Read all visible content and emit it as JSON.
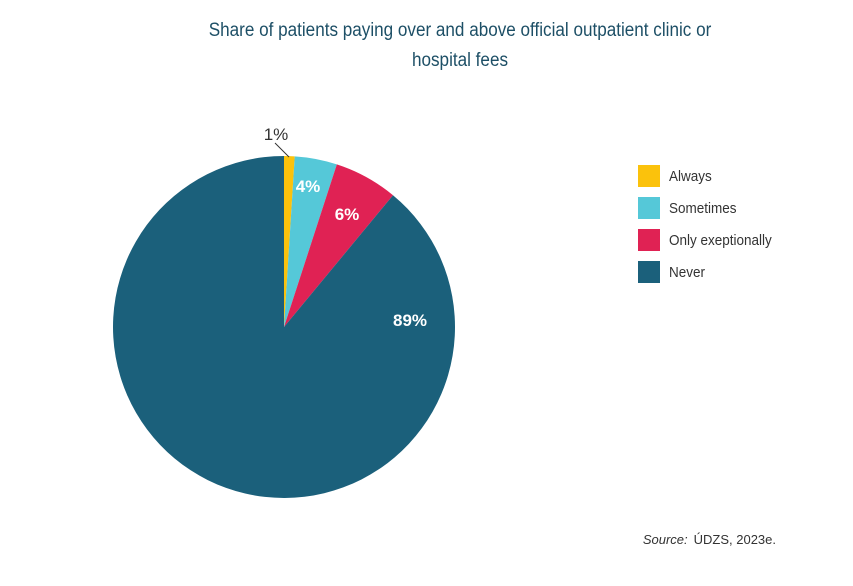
{
  "chart_data": {
    "type": "pie",
    "title": "Share of patients paying over and above official outpatient clinic or hospital fees",
    "slices": [
      {
        "label": "Always",
        "value": 1,
        "display": "1%",
        "color": "#FBC20C"
      },
      {
        "label": "Sometimes",
        "value": 4,
        "display": "4%",
        "color": "#55C8D8"
      },
      {
        "label": "Only exeptionally",
        "value": 6,
        "display": "6%",
        "color": "#E02254"
      },
      {
        "label": "Never",
        "value": 89,
        "display": "89%",
        "color": "#1B607B"
      }
    ],
    "start_angle": "top, clockwise",
    "legend_position": "right"
  },
  "source": {
    "label": "Source:",
    "text": "ÚDZS, 2023e."
  }
}
